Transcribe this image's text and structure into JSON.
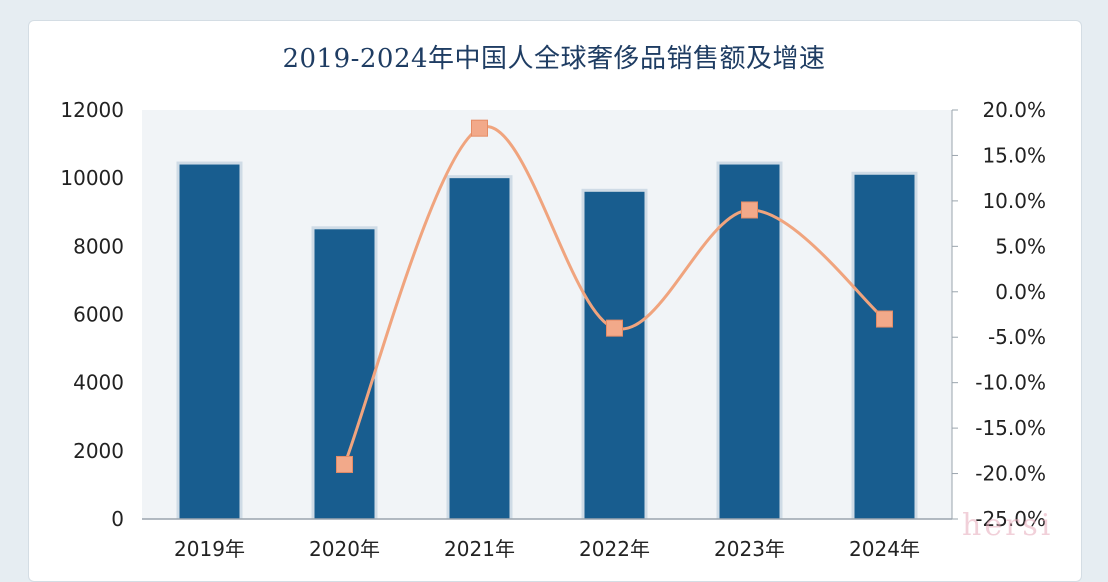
{
  "chart_data": {
    "type": "bar",
    "title": "2019-2024年中国人全球奢侈品销售额及增速",
    "categories": [
      "2019年",
      "2020年",
      "2021年",
      "2022年",
      "2023年",
      "2024年"
    ],
    "series": [
      {
        "type": "bar",
        "values": [
          10400,
          8500,
          10000,
          9600,
          10400,
          10100
        ],
        "color": "#185d8f"
      },
      {
        "type": "line",
        "axis": "right",
        "values": [
          null,
          -19.0,
          18.0,
          -4.0,
          9.0,
          -3.0
        ],
        "color": "#f0a47e",
        "marker_color": "#f2a98a"
      }
    ],
    "ylim_left": [
      0,
      12000
    ],
    "left_ticks": [
      "0",
      "2000",
      "4000",
      "6000",
      "8000",
      "10000",
      "12000"
    ],
    "ylim_right": [
      -25,
      20
    ],
    "right_ticks": [
      "-25.0%",
      "-20.0%",
      "-15.0%",
      "-10.0%",
      "-5.0%",
      "0.0%",
      "5.0%",
      "10.0%",
      "15.0%",
      "20.0%"
    ],
    "grid": false,
    "legend": "none"
  },
  "watermark": "hersi"
}
